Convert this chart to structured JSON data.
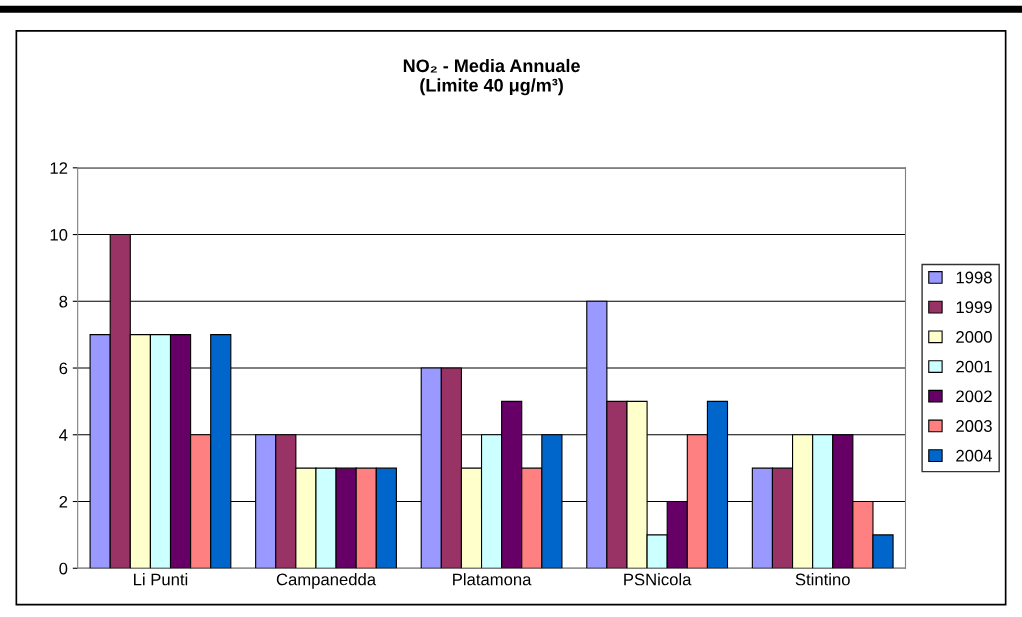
{
  "chart_data": {
    "type": "bar",
    "title": "NO₂ - Media Annuale\n(Limite 40 μg/m³)",
    "categories": [
      "Li Punti",
      "Campanedda",
      "Platamona",
      "PSNicola",
      "Stintino"
    ],
    "series": [
      {
        "name": "1998",
        "color": "#9999ff",
        "values": [
          7,
          4,
          6,
          8,
          3
        ]
      },
      {
        "name": "1999",
        "color": "#993366",
        "values": [
          10,
          4,
          6,
          5,
          3
        ]
      },
      {
        "name": "2000",
        "color": "#ffffcc",
        "values": [
          7,
          3,
          3,
          5,
          4
        ]
      },
      {
        "name": "2001",
        "color": "#ccffff",
        "values": [
          7,
          3,
          4,
          1,
          4
        ]
      },
      {
        "name": "2002",
        "color": "#660066",
        "values": [
          7,
          3,
          5,
          2,
          4
        ]
      },
      {
        "name": "2003",
        "color": "#ff8080",
        "values": [
          4,
          3,
          3,
          4,
          2
        ]
      },
      {
        "name": "2004",
        "color": "#0066cc",
        "values": [
          7,
          3,
          4,
          5,
          1
        ]
      }
    ],
    "ylim": [
      0,
      12
    ],
    "yticks": [
      0,
      2,
      4,
      6,
      8,
      10,
      12
    ],
    "grid": "y",
    "legend": "right"
  }
}
